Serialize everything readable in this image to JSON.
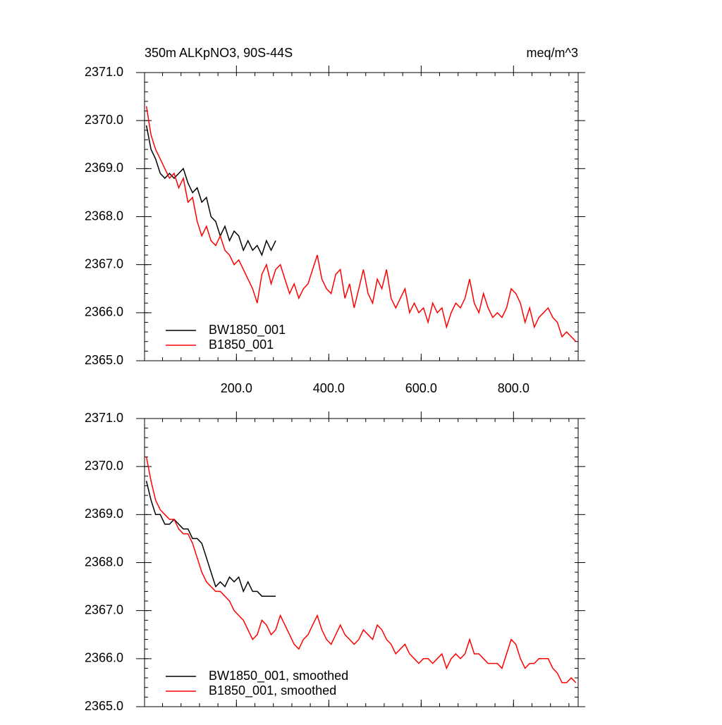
{
  "chart_data": [
    {
      "type": "line",
      "title": "350m ALKpNO3, 90S-44S",
      "units_label": "meq/m^3",
      "xlim": [
        1,
        940
      ],
      "ylim": [
        2365,
        2371
      ],
      "xticks": [
        {
          "value": 200,
          "label": "200.0"
        },
        {
          "value": 400,
          "label": "400.0"
        },
        {
          "value": 600,
          "label": "600.0"
        },
        {
          "value": 800,
          "label": "800.0"
        }
      ],
      "yticks": [
        {
          "value": 2365,
          "label": "2365.0"
        },
        {
          "value": 2366,
          "label": "2366.0"
        },
        {
          "value": 2367,
          "label": "2367.0"
        },
        {
          "value": 2368,
          "label": "2368.0"
        },
        {
          "value": 2369,
          "label": "2369.0"
        },
        {
          "value": 2370,
          "label": "2370.0"
        },
        {
          "value": 2371,
          "label": "2371.0"
        }
      ],
      "show_xtick_labels": true,
      "legend": "lower left",
      "series": [
        {
          "name": "BW1850_001",
          "color": "#000000",
          "x": [
            5,
            15,
            25,
            35,
            45,
            55,
            65,
            75,
            85,
            95,
            105,
            115,
            125,
            135,
            145,
            155,
            165,
            175,
            185,
            195,
            205,
            215,
            225,
            235,
            245,
            255,
            265,
            275,
            285
          ],
          "values": [
            2369.9,
            2369.4,
            2369.2,
            2368.9,
            2368.8,
            2368.9,
            2368.8,
            2368.9,
            2369.0,
            2368.7,
            2368.5,
            2368.6,
            2368.3,
            2368.4,
            2368.0,
            2367.9,
            2367.6,
            2367.8,
            2367.5,
            2367.7,
            2367.6,
            2367.3,
            2367.5,
            2367.3,
            2367.4,
            2367.2,
            2367.5,
            2367.3,
            2367.5
          ]
        },
        {
          "name": "B1850_001",
          "color": "#ff0000",
          "x": [
            5,
            15,
            25,
            35,
            45,
            55,
            65,
            75,
            85,
            95,
            105,
            115,
            125,
            135,
            145,
            155,
            165,
            175,
            185,
            195,
            205,
            215,
            225,
            235,
            245,
            255,
            265,
            275,
            285,
            295,
            305,
            315,
            325,
            335,
            345,
            355,
            365,
            375,
            385,
            395,
            405,
            415,
            425,
            435,
            445,
            455,
            465,
            475,
            485,
            495,
            505,
            515,
            525,
            535,
            545,
            555,
            565,
            575,
            585,
            595,
            605,
            615,
            625,
            635,
            645,
            655,
            665,
            675,
            685,
            695,
            705,
            715,
            725,
            735,
            745,
            755,
            765,
            775,
            785,
            795,
            805,
            815,
            825,
            835,
            845,
            855,
            865,
            875,
            885,
            895,
            905,
            915,
            925,
            935
          ],
          "values": [
            2370.3,
            2369.7,
            2369.4,
            2369.2,
            2369.0,
            2368.8,
            2368.9,
            2368.6,
            2368.8,
            2368.3,
            2368.4,
            2367.9,
            2367.6,
            2367.8,
            2367.5,
            2367.4,
            2367.6,
            2367.3,
            2367.2,
            2367.0,
            2367.1,
            2366.9,
            2366.7,
            2366.5,
            2366.2,
            2366.8,
            2367.0,
            2366.6,
            2366.9,
            2367.0,
            2366.7,
            2366.4,
            2366.6,
            2366.3,
            2366.5,
            2366.6,
            2366.9,
            2367.2,
            2366.7,
            2366.5,
            2366.4,
            2366.8,
            2366.9,
            2366.3,
            2366.6,
            2366.1,
            2366.5,
            2366.9,
            2366.4,
            2366.2,
            2366.7,
            2366.5,
            2366.9,
            2366.3,
            2366.1,
            2366.3,
            2366.5,
            2366.0,
            2366.2,
            2366.0,
            2366.1,
            2365.8,
            2366.2,
            2366.0,
            2366.1,
            2365.7,
            2366.0,
            2366.2,
            2366.1,
            2366.3,
            2366.7,
            2366.2,
            2366.0,
            2366.4,
            2366.1,
            2365.9,
            2366.0,
            2365.9,
            2366.1,
            2366.5,
            2366.4,
            2366.2,
            2365.8,
            2366.1,
            2365.7,
            2365.9,
            2366.0,
            2366.1,
            2365.9,
            2365.8,
            2365.5,
            2365.6,
            2365.5,
            2365.4
          ]
        }
      ]
    },
    {
      "type": "line",
      "xlim": [
        1,
        940
      ],
      "ylim": [
        2365,
        2371
      ],
      "xticks": [
        200,
        400,
        600,
        800
      ],
      "yticks": [
        {
          "value": 2365,
          "label": "2365.0"
        },
        {
          "value": 2366,
          "label": "2366.0"
        },
        {
          "value": 2367,
          "label": "2367.0"
        },
        {
          "value": 2368,
          "label": "2368.0"
        },
        {
          "value": 2369,
          "label": "2369.0"
        },
        {
          "value": 2370,
          "label": "2370.0"
        },
        {
          "value": 2371,
          "label": "2371.0"
        }
      ],
      "show_xtick_labels": false,
      "legend": "lower left",
      "series": [
        {
          "name": "BW1850_001, smoothed",
          "color": "#000000",
          "x": [
            5,
            15,
            25,
            35,
            45,
            55,
            65,
            75,
            85,
            95,
            105,
            115,
            125,
            135,
            145,
            155,
            165,
            175,
            185,
            195,
            205,
            215,
            225,
            235,
            245,
            255,
            265,
            275,
            285
          ],
          "values": [
            2369.7,
            2369.3,
            2369.0,
            2369.0,
            2368.8,
            2368.8,
            2368.9,
            2368.8,
            2368.7,
            2368.7,
            2368.5,
            2368.5,
            2368.4,
            2368.1,
            2367.8,
            2367.5,
            2367.6,
            2367.5,
            2367.7,
            2367.6,
            2367.7,
            2367.4,
            2367.6,
            2367.4,
            2367.4,
            2367.3,
            2367.3,
            2367.3,
            2367.3
          ]
        },
        {
          "name": "B1850_001, smoothed",
          "color": "#ff0000",
          "x": [
            5,
            15,
            25,
            35,
            45,
            55,
            65,
            75,
            85,
            95,
            105,
            115,
            125,
            135,
            145,
            155,
            165,
            175,
            185,
            195,
            205,
            215,
            225,
            235,
            245,
            255,
            265,
            275,
            285,
            295,
            305,
            315,
            325,
            335,
            345,
            355,
            365,
            375,
            385,
            395,
            405,
            415,
            425,
            435,
            445,
            455,
            465,
            475,
            485,
            495,
            505,
            515,
            525,
            535,
            545,
            555,
            565,
            575,
            585,
            595,
            605,
            615,
            625,
            635,
            645,
            655,
            665,
            675,
            685,
            695,
            705,
            715,
            725,
            735,
            745,
            755,
            765,
            775,
            785,
            795,
            805,
            815,
            825,
            835,
            845,
            855,
            865,
            875,
            885,
            895,
            905,
            915,
            925,
            935
          ],
          "values": [
            2370.2,
            2369.7,
            2369.3,
            2369.1,
            2369.0,
            2368.9,
            2368.9,
            2368.7,
            2368.6,
            2368.6,
            2368.4,
            2368.1,
            2367.8,
            2367.6,
            2367.5,
            2367.4,
            2367.4,
            2367.3,
            2367.2,
            2367.0,
            2366.9,
            2366.8,
            2366.6,
            2366.4,
            2366.5,
            2366.8,
            2366.7,
            2366.5,
            2366.6,
            2366.9,
            2366.7,
            2366.5,
            2366.3,
            2366.2,
            2366.4,
            2366.5,
            2366.7,
            2366.9,
            2366.6,
            2366.4,
            2366.3,
            2366.5,
            2366.7,
            2366.5,
            2366.4,
            2366.3,
            2366.4,
            2366.6,
            2366.5,
            2366.4,
            2366.7,
            2366.6,
            2366.4,
            2366.3,
            2366.1,
            2366.2,
            2366.3,
            2366.1,
            2366.0,
            2365.9,
            2366.0,
            2366.0,
            2365.9,
            2366.0,
            2366.1,
            2365.8,
            2366.0,
            2366.1,
            2366.0,
            2366.1,
            2366.4,
            2366.1,
            2366.1,
            2366.0,
            2365.9,
            2365.9,
            2365.9,
            2365.8,
            2366.1,
            2366.4,
            2366.3,
            2366.0,
            2365.8,
            2365.9,
            2365.9,
            2366.0,
            2366.0,
            2366.0,
            2365.8,
            2365.7,
            2365.5,
            2365.5,
            2365.6,
            2365.5
          ]
        }
      ]
    }
  ]
}
